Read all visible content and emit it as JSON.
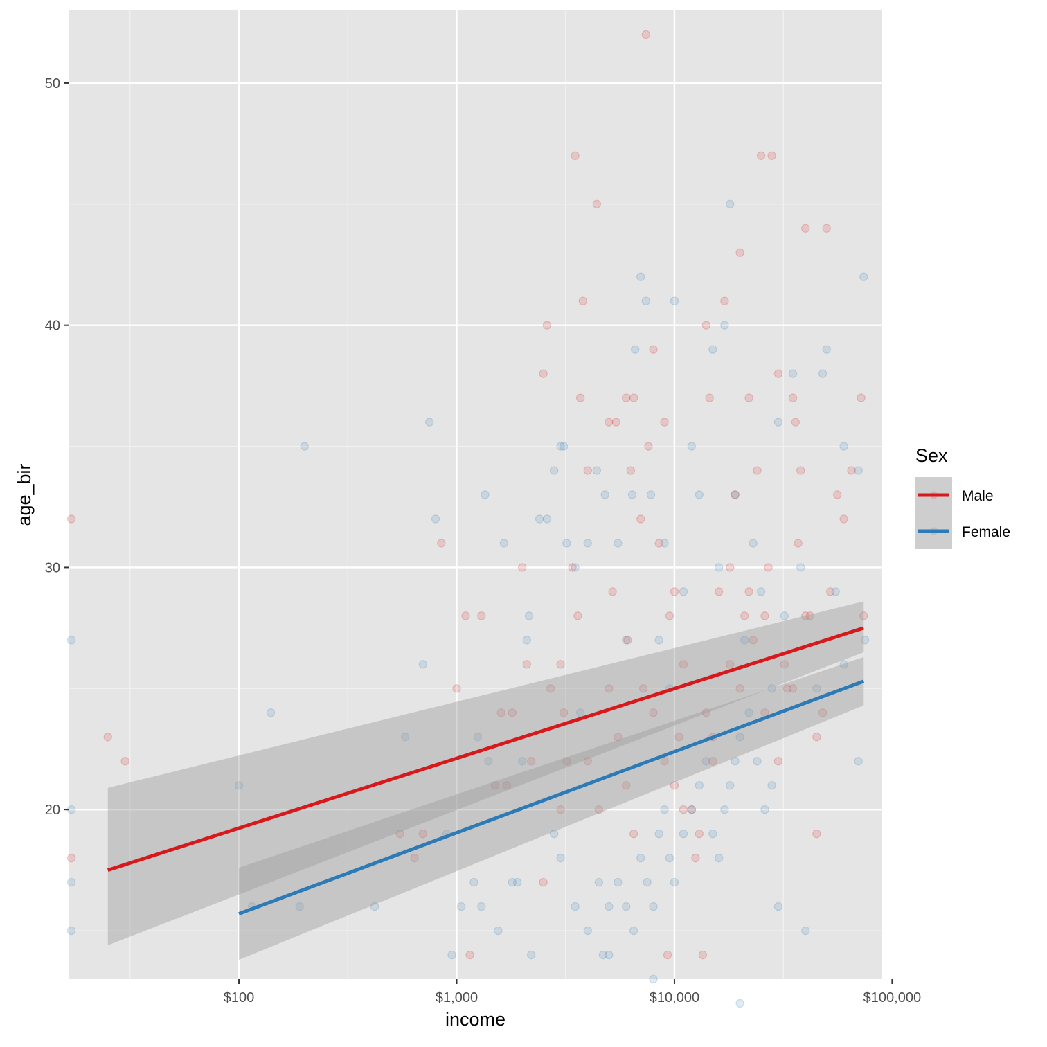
{
  "chart_data": {
    "type": "scatter",
    "title": "",
    "xlabel": "income",
    "ylabel": "age_bir",
    "x_scale": "log10",
    "xlim": [
      16.5,
      90000
    ],
    "ylim": [
      13,
      53
    ],
    "x_ticks": [
      {
        "value": 100,
        "label": "$100"
      },
      {
        "value": 1000,
        "label": "$1,000"
      },
      {
        "value": 10000,
        "label": "$10,000"
      },
      {
        "value": 100000,
        "label": "$100,000"
      }
    ],
    "y_ticks": [
      {
        "value": 20,
        "label": "20"
      },
      {
        "value": 30,
        "label": "30"
      },
      {
        "value": 40,
        "label": "40"
      },
      {
        "value": 50,
        "label": "50"
      }
    ],
    "grid": true,
    "legend": {
      "title": "Sex",
      "position": "right"
    },
    "point_alpha": 0.15,
    "series": [
      {
        "name": "Male",
        "color": "#d7191c",
        "points": [
          [
            17,
            32
          ],
          [
            17,
            18
          ],
          [
            25,
            23
          ],
          [
            30,
            22
          ],
          [
            550,
            19
          ],
          [
            640,
            18
          ],
          [
            700,
            19
          ],
          [
            850,
            31
          ],
          [
            1000,
            25
          ],
          [
            1100,
            28
          ],
          [
            1150,
            14
          ],
          [
            1300,
            28
          ],
          [
            1500,
            21
          ],
          [
            1600,
            24
          ],
          [
            1700,
            21
          ],
          [
            1800,
            24
          ],
          [
            2100,
            26
          ],
          [
            2200,
            22
          ],
          [
            2500,
            38
          ],
          [
            2600,
            40
          ],
          [
            2700,
            25
          ],
          [
            3000,
            26
          ],
          [
            3100,
            24
          ],
          [
            3200,
            22
          ],
          [
            3400,
            30
          ],
          [
            3500,
            47
          ],
          [
            3600,
            28
          ],
          [
            3700,
            37
          ],
          [
            3800,
            41
          ],
          [
            4000,
            34
          ],
          [
            4400,
            45
          ],
          [
            5000,
            36
          ],
          [
            5200,
            29
          ],
          [
            5400,
            36
          ],
          [
            6000,
            37
          ],
          [
            6100,
            27
          ],
          [
            6300,
            34
          ],
          [
            6500,
            37
          ],
          [
            7000,
            32
          ],
          [
            7400,
            52
          ],
          [
            7600,
            35
          ],
          [
            8000,
            39
          ],
          [
            8500,
            31
          ],
          [
            9000,
            36
          ],
          [
            9300,
            14
          ],
          [
            9500,
            28
          ],
          [
            10000,
            29
          ],
          [
            10500,
            23
          ],
          [
            11000,
            26
          ],
          [
            12000,
            20
          ],
          [
            13000,
            19
          ],
          [
            13500,
            14
          ],
          [
            14000,
            40
          ],
          [
            14500,
            37
          ],
          [
            15000,
            22
          ],
          [
            16000,
            29
          ],
          [
            17000,
            41
          ],
          [
            18000,
            30
          ],
          [
            19000,
            33
          ],
          [
            20000,
            43
          ],
          [
            21000,
            28
          ],
          [
            22000,
            37
          ],
          [
            24000,
            34
          ],
          [
            25000,
            47
          ],
          [
            26000,
            28
          ],
          [
            28000,
            47
          ],
          [
            30000,
            38
          ],
          [
            33000,
            25
          ],
          [
            35000,
            37
          ],
          [
            36000,
            36
          ],
          [
            38000,
            34
          ],
          [
            40000,
            44
          ],
          [
            42000,
            28
          ],
          [
            45000,
            19
          ],
          [
            48000,
            24
          ],
          [
            50000,
            44
          ],
          [
            52000,
            29
          ],
          [
            56000,
            33
          ],
          [
            60000,
            32
          ],
          [
            65000,
            34
          ],
          [
            72000,
            37
          ],
          [
            74000,
            28
          ],
          [
            7200,
            25
          ],
          [
            8000,
            24
          ],
          [
            9000,
            22
          ],
          [
            10000,
            21
          ],
          [
            11000,
            20
          ],
          [
            12500,
            18
          ],
          [
            14000,
            24
          ],
          [
            15000,
            23
          ],
          [
            18000,
            26
          ],
          [
            20000,
            25
          ],
          [
            23000,
            27
          ],
          [
            26000,
            24
          ],
          [
            30000,
            22
          ],
          [
            35000,
            25
          ],
          [
            40000,
            28
          ],
          [
            45000,
            23
          ],
          [
            5000,
            25
          ],
          [
            5500,
            23
          ],
          [
            6000,
            21
          ],
          [
            6500,
            19
          ],
          [
            4000,
            22
          ],
          [
            4500,
            20
          ],
          [
            3000,
            20
          ],
          [
            2500,
            17
          ],
          [
            2000,
            30
          ],
          [
            22000,
            29
          ],
          [
            27000,
            30
          ],
          [
            32000,
            26
          ],
          [
            37000,
            31
          ]
        ]
      },
      {
        "name": "Female",
        "color": "#2c7bb6",
        "points": [
          [
            17,
            27
          ],
          [
            17,
            20
          ],
          [
            17,
            17
          ],
          [
            17,
            15
          ],
          [
            100,
            21
          ],
          [
            115,
            16
          ],
          [
            140,
            24
          ],
          [
            190,
            16
          ],
          [
            200,
            35
          ],
          [
            420,
            16
          ],
          [
            580,
            23
          ],
          [
            700,
            26
          ],
          [
            750,
            36
          ],
          [
            800,
            32
          ],
          [
            900,
            19
          ],
          [
            950,
            14
          ],
          [
            1050,
            16
          ],
          [
            1200,
            17
          ],
          [
            1250,
            23
          ],
          [
            1300,
            16
          ],
          [
            1350,
            33
          ],
          [
            1400,
            22
          ],
          [
            1550,
            15
          ],
          [
            1650,
            31
          ],
          [
            1800,
            17
          ],
          [
            1900,
            17
          ],
          [
            2000,
            22
          ],
          [
            2100,
            27
          ],
          [
            2150,
            28
          ],
          [
            2200,
            14
          ],
          [
            2400,
            32
          ],
          [
            2600,
            32
          ],
          [
            2800,
            34
          ],
          [
            3000,
            35
          ],
          [
            3100,
            35
          ],
          [
            3200,
            31
          ],
          [
            3500,
            30
          ],
          [
            3700,
            24
          ],
          [
            4000,
            31
          ],
          [
            4400,
            34
          ],
          [
            4700,
            14
          ],
          [
            4800,
            33
          ],
          [
            5000,
            14
          ],
          [
            5500,
            31
          ],
          [
            6000,
            27
          ],
          [
            6400,
            33
          ],
          [
            6600,
            39
          ],
          [
            7000,
            42
          ],
          [
            7400,
            41
          ],
          [
            7800,
            33
          ],
          [
            8000,
            13
          ],
          [
            8500,
            27
          ],
          [
            9000,
            31
          ],
          [
            9500,
            25
          ],
          [
            10000,
            41
          ],
          [
            11000,
            29
          ],
          [
            12000,
            35
          ],
          [
            13000,
            33
          ],
          [
            15000,
            39
          ],
          [
            16000,
            30
          ],
          [
            17000,
            40
          ],
          [
            18000,
            45
          ],
          [
            19000,
            33
          ],
          [
            20000,
            12
          ],
          [
            21000,
            27
          ],
          [
            23000,
            31
          ],
          [
            25000,
            29
          ],
          [
            28000,
            25
          ],
          [
            30000,
            36
          ],
          [
            32000,
            28
          ],
          [
            35000,
            38
          ],
          [
            38000,
            30
          ],
          [
            40000,
            15
          ],
          [
            45000,
            25
          ],
          [
            48000,
            38
          ],
          [
            50000,
            39
          ],
          [
            55000,
            29
          ],
          [
            60000,
            35
          ],
          [
            70000,
            34
          ],
          [
            74000,
            42
          ],
          [
            5000,
            16
          ],
          [
            5500,
            17
          ],
          [
            6000,
            16
          ],
          [
            6500,
            15
          ],
          [
            7000,
            18
          ],
          [
            7500,
            17
          ],
          [
            8000,
            16
          ],
          [
            8500,
            19
          ],
          [
            9000,
            20
          ],
          [
            9500,
            18
          ],
          [
            10000,
            17
          ],
          [
            11000,
            19
          ],
          [
            12000,
            20
          ],
          [
            13000,
            21
          ],
          [
            14000,
            22
          ],
          [
            15000,
            19
          ],
          [
            16000,
            18
          ],
          [
            17000,
            20
          ],
          [
            18000,
            21
          ],
          [
            19000,
            22
          ],
          [
            20000,
            23
          ],
          [
            22000,
            24
          ],
          [
            24000,
            22
          ],
          [
            26000,
            20
          ],
          [
            28000,
            21
          ],
          [
            30000,
            16
          ],
          [
            4000,
            15
          ],
          [
            4500,
            17
          ],
          [
            3500,
            16
          ],
          [
            3000,
            18
          ],
          [
            2800,
            19
          ],
          [
            60000,
            26
          ],
          [
            70000,
            22
          ],
          [
            75000,
            27
          ]
        ]
      }
    ],
    "fits": [
      {
        "name": "Male",
        "color": "#d7191c",
        "x": [
          25,
          74000
        ],
        "y": [
          17.5,
          27.5
        ],
        "lower": [
          14.4,
          26.5
        ],
        "upper": [
          20.9,
          28.6
        ]
      },
      {
        "name": "Female",
        "color": "#2c7bb6",
        "x": [
          100,
          74000
        ],
        "y": [
          15.7,
          25.3
        ],
        "lower": [
          13.8,
          24.3
        ],
        "upper": [
          17.6,
          26.3
        ]
      }
    ]
  }
}
